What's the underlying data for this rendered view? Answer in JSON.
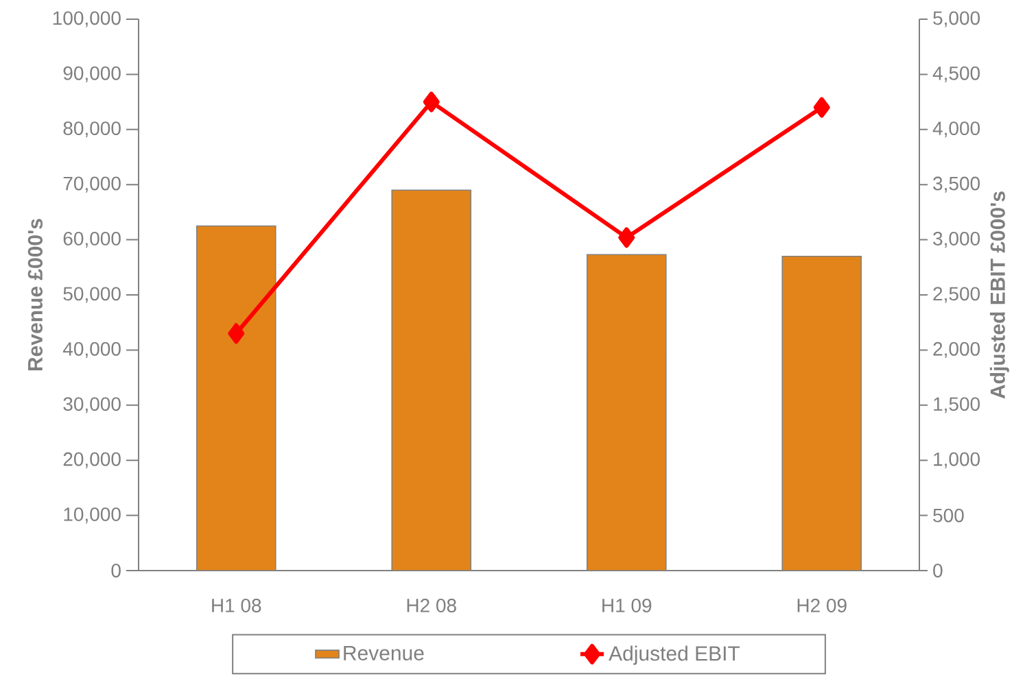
{
  "chart_data": {
    "type": "bar",
    "categories": [
      "H1 08",
      "H2 08",
      "H1 09",
      "H2 09"
    ],
    "ylabel": "Revenue £000's",
    "y2label": "Adjusted EBIT £000's",
    "ylim": [
      0,
      100000
    ],
    "yticks": [
      {
        "value": 0,
        "label": "0"
      },
      {
        "value": 10000,
        "label": "10,000"
      },
      {
        "value": 20000,
        "label": "20,000"
      },
      {
        "value": 30000,
        "label": "30,000"
      },
      {
        "value": 40000,
        "label": "40,000"
      },
      {
        "value": 50000,
        "label": "50,000"
      },
      {
        "value": 60000,
        "label": "60,000"
      },
      {
        "value": 70000,
        "label": "70,000"
      },
      {
        "value": 80000,
        "label": "80,000"
      },
      {
        "value": 90000,
        "label": "90,000"
      },
      {
        "value": 100000,
        "label": "100,000"
      }
    ],
    "y2lim": [
      0,
      5000
    ],
    "y2ticks": [
      0,
      500,
      {
        "value": 1000,
        "label": "1,000"
      },
      {
        "value": 1500,
        "label": "1,500"
      },
      {
        "value": 2000,
        "label": "2,000"
      },
      {
        "value": 2500,
        "label": "2,500"
      },
      {
        "value": 3000,
        "label": "3,000"
      },
      {
        "value": 3500,
        "label": "3,500"
      },
      {
        "value": 4000,
        "label": "4,000"
      },
      {
        "value": 4500,
        "label": "4,500"
      },
      {
        "value": 5000,
        "label": "5,000"
      }
    ],
    "legend": "bottom",
    "series": [
      {
        "name": "Revenue",
        "color": "#e2841a",
        "values": [
          62500,
          69000,
          57300,
          57000
        ]
      },
      {
        "name": "Adjusted EBIT",
        "type": "line",
        "axis": "y2",
        "marker": "diamond",
        "color": "#ff0000",
        "values": [
          2150,
          4250,
          3020,
          4200
        ]
      }
    ]
  }
}
